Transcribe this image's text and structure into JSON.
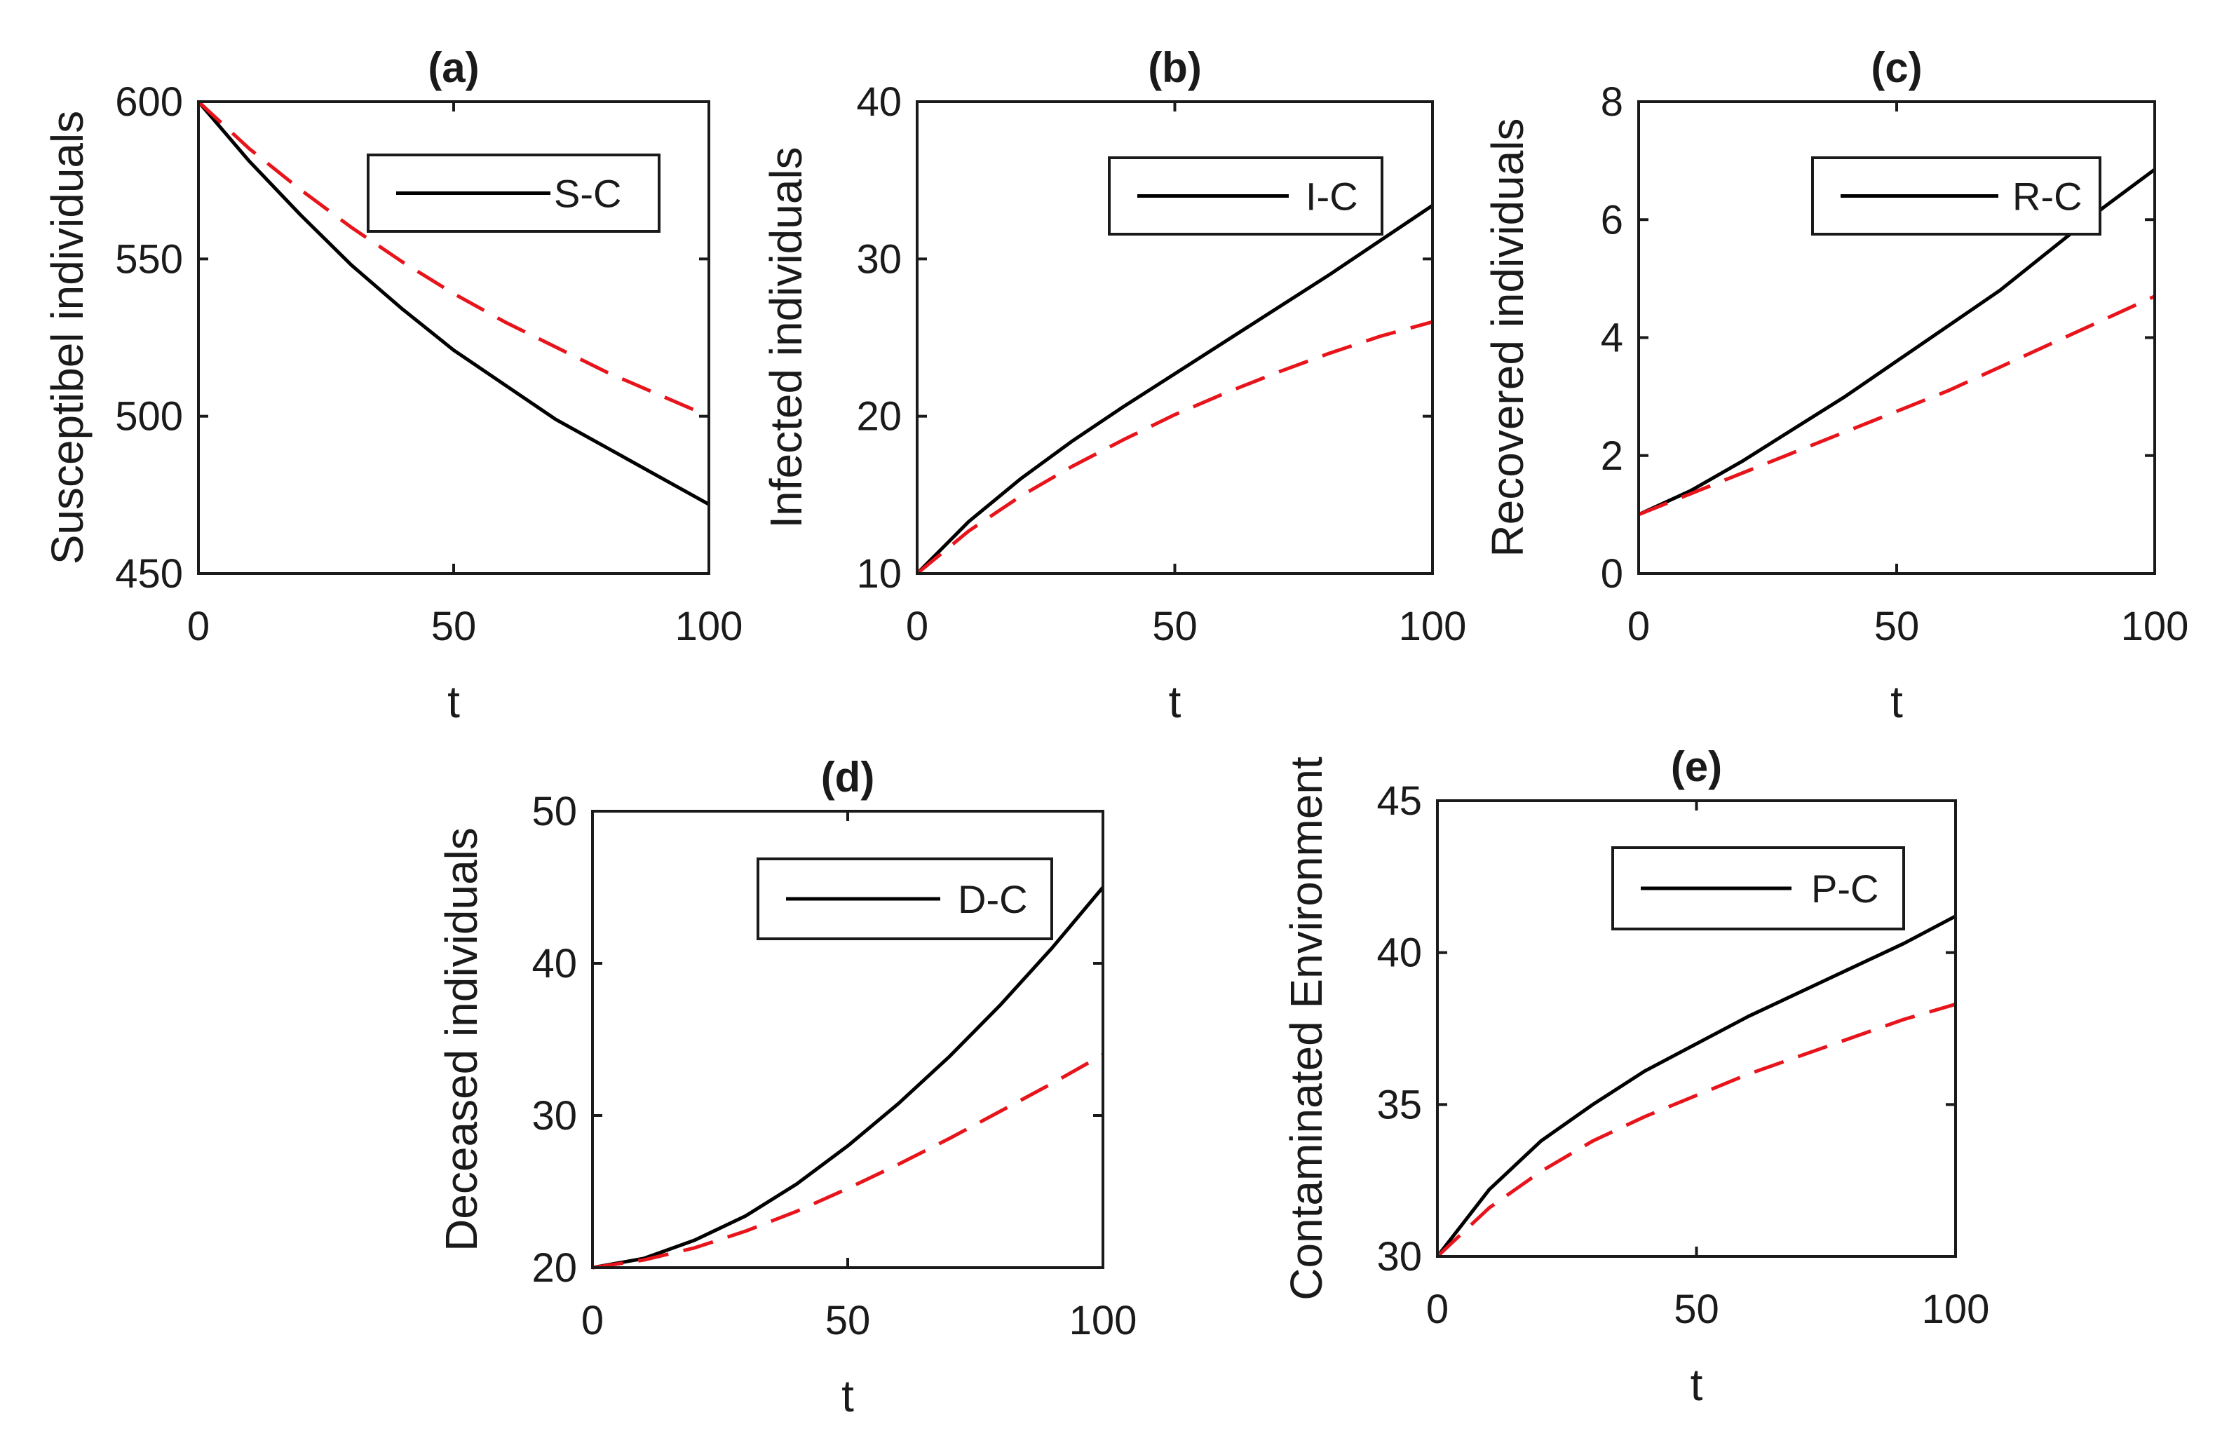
{
  "chart_data": [
    {
      "type": "line",
      "title": "(a)",
      "xlabel": "t",
      "ylabel": "Susceptibel individuals",
      "xlim": [
        0,
        100
      ],
      "ylim": [
        450,
        600
      ],
      "xticks": [
        0,
        50,
        100
      ],
      "yticks": [
        450,
        500,
        550,
        600
      ],
      "legend": {
        "position": "top-right",
        "entries": [
          "S-C"
        ]
      },
      "series": [
        {
          "name": "S-C",
          "color": "#000000",
          "dash": "solid",
          "x": [
            0,
            10,
            20,
            30,
            40,
            50,
            60,
            70,
            80,
            90,
            100
          ],
          "y": [
            600,
            581,
            564,
            548,
            534,
            521,
            510,
            499,
            490,
            481,
            472
          ]
        },
        {
          "name": "",
          "color": "#e8141b",
          "dash": "dashed",
          "x": [
            0,
            10,
            20,
            30,
            40,
            50,
            60,
            70,
            80,
            90,
            100
          ],
          "y": [
            600,
            585,
            572,
            560,
            549,
            539,
            530,
            522,
            514,
            507,
            500
          ]
        }
      ]
    },
    {
      "type": "line",
      "title": "(b)",
      "xlabel": "t",
      "ylabel": "Infected individuals",
      "xlim": [
        0,
        100
      ],
      "ylim": [
        10,
        40
      ],
      "xticks": [
        0,
        50,
        100
      ],
      "yticks": [
        10,
        20,
        30,
        40
      ],
      "legend": {
        "position": "top-right",
        "entries": [
          "I-C"
        ]
      },
      "series": [
        {
          "name": "I-C",
          "color": "#000000",
          "dash": "solid",
          "x": [
            0,
            10,
            20,
            30,
            40,
            50,
            60,
            70,
            80,
            90,
            100
          ],
          "y": [
            10,
            13.3,
            16.0,
            18.4,
            20.6,
            22.7,
            24.8,
            26.9,
            29.0,
            31.2,
            33.4
          ]
        },
        {
          "name": "",
          "color": "#e8141b",
          "dash": "dashed",
          "x": [
            0,
            10,
            20,
            30,
            40,
            50,
            60,
            70,
            80,
            90,
            100
          ],
          "y": [
            10,
            12.7,
            14.9,
            16.8,
            18.5,
            20.1,
            21.5,
            22.8,
            24.0,
            25.1,
            26.0
          ]
        }
      ]
    },
    {
      "type": "line",
      "title": "(c)",
      "xlabel": "t",
      "ylabel": "Recovered individuals",
      "xlim": [
        0,
        100
      ],
      "ylim": [
        0,
        8
      ],
      "xticks": [
        0,
        50,
        100
      ],
      "yticks": [
        0,
        2,
        4,
        6,
        8
      ],
      "legend": {
        "position": "top-right",
        "entries": [
          "R-C"
        ]
      },
      "series": [
        {
          "name": "R-C",
          "color": "#000000",
          "dash": "solid",
          "x": [
            0,
            10,
            20,
            30,
            40,
            50,
            60,
            70,
            80,
            90,
            100
          ],
          "y": [
            1.0,
            1.4,
            1.9,
            2.45,
            3.0,
            3.6,
            4.2,
            4.8,
            5.5,
            6.2,
            6.85
          ]
        },
        {
          "name": "",
          "color": "#e8141b",
          "dash": "dashed",
          "x": [
            0,
            10,
            20,
            30,
            40,
            50,
            60,
            70,
            80,
            90,
            100
          ],
          "y": [
            1.0,
            1.35,
            1.7,
            2.05,
            2.4,
            2.75,
            3.1,
            3.5,
            3.9,
            4.3,
            4.7
          ]
        }
      ]
    },
    {
      "type": "line",
      "title": "(d)",
      "xlabel": "t",
      "ylabel": "Deceased individuals",
      "xlim": [
        0,
        100
      ],
      "ylim": [
        20,
        50
      ],
      "xticks": [
        0,
        50,
        100
      ],
      "yticks": [
        20,
        30,
        40,
        50
      ],
      "legend": {
        "position": "top-right",
        "entries": [
          "D-C"
        ]
      },
      "series": [
        {
          "name": "D-C",
          "color": "#000000",
          "dash": "solid",
          "x": [
            0,
            10,
            20,
            30,
            40,
            50,
            60,
            70,
            80,
            90,
            100
          ],
          "y": [
            20.0,
            20.6,
            21.8,
            23.4,
            25.5,
            28.0,
            30.8,
            33.9,
            37.3,
            41.0,
            45.0
          ]
        },
        {
          "name": "",
          "color": "#e8141b",
          "dash": "dashed",
          "x": [
            0,
            10,
            20,
            30,
            40,
            50,
            60,
            70,
            80,
            90,
            100
          ],
          "y": [
            20.0,
            20.5,
            21.3,
            22.4,
            23.7,
            25.2,
            26.8,
            28.5,
            30.3,
            32.1,
            34.0
          ]
        }
      ]
    },
    {
      "type": "line",
      "title": "(e)",
      "xlabel": "t",
      "ylabel": "Contaminated Environment",
      "xlim": [
        0,
        100
      ],
      "ylim": [
        30,
        45
      ],
      "xticks": [
        0,
        50,
        100
      ],
      "yticks": [
        30,
        35,
        40,
        45
      ],
      "legend": {
        "position": "top-right",
        "entries": [
          "P-C"
        ]
      },
      "series": [
        {
          "name": "P-C",
          "color": "#000000",
          "dash": "solid",
          "x": [
            0,
            10,
            20,
            30,
            40,
            50,
            60,
            70,
            80,
            90,
            100
          ],
          "y": [
            30.0,
            32.2,
            33.8,
            35.0,
            36.1,
            37.0,
            37.9,
            38.7,
            39.5,
            40.3,
            41.2
          ]
        },
        {
          "name": "",
          "color": "#e8141b",
          "dash": "dashed",
          "x": [
            0,
            10,
            20,
            30,
            40,
            50,
            60,
            70,
            80,
            90,
            100
          ],
          "y": [
            30.0,
            31.6,
            32.8,
            33.8,
            34.6,
            35.3,
            36.0,
            36.6,
            37.2,
            37.8,
            38.3
          ]
        }
      ]
    }
  ]
}
